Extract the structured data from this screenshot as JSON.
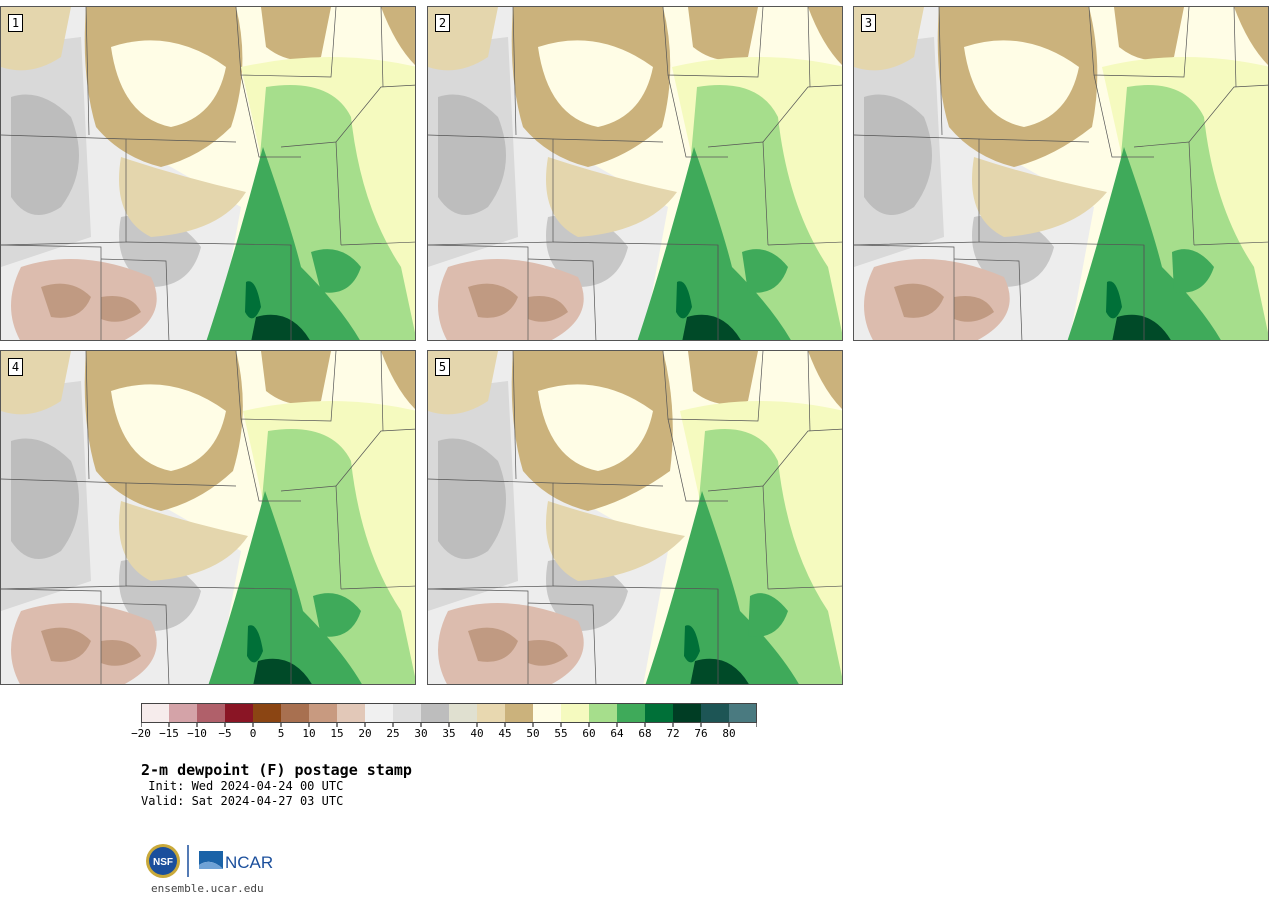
{
  "panels": [
    {
      "label": "1"
    },
    {
      "label": "2"
    },
    {
      "label": "3"
    },
    {
      "label": "4"
    },
    {
      "label": "5"
    }
  ],
  "colorbar": {
    "ticks": [
      "−20",
      "−15",
      "−10",
      "−5",
      "0",
      "5",
      "10",
      "15",
      "20",
      "25",
      "30",
      "35",
      "40",
      "45",
      "50",
      "55",
      "60",
      "64",
      "68",
      "72",
      "76",
      "80"
    ],
    "colors": [
      "#f6ecec",
      "#d4a3a8",
      "#b0606a",
      "#8a1525",
      "#8b4513",
      "#a87050",
      "#c89a80",
      "#e2c8b8",
      "#f0f0f0",
      "#dedede",
      "#bdbdbd",
      "#e0e0d0",
      "#e8d8b0",
      "#cbb27c",
      "#fffde6",
      "#f5fabf",
      "#a6de8c",
      "#3faa5a",
      "#007038",
      "#003d24",
      "#1d5555",
      "#4a7a80"
    ]
  },
  "title": "2-m dewpoint (F) postage stamp",
  "init": " Init: Wed 2024-04-24 00 UTC",
  "valid": "Valid: Sat 2024-04-27 03 UTC",
  "logos": {
    "nsf": "NSF",
    "ncar": "NCAR"
  },
  "website": "ensemble.ucar.edu"
}
